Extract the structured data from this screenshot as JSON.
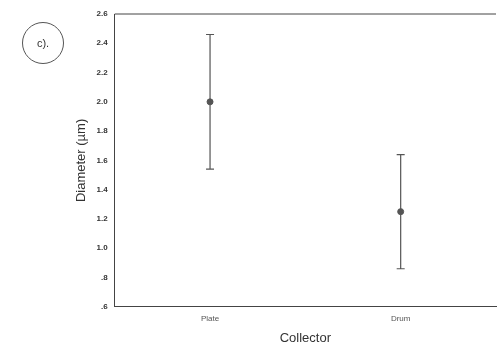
{
  "chart_data": {
    "type": "scatter",
    "annotation": "c).",
    "x_label": "Collector",
    "y_label": "Diameter (µm)",
    "categories": [
      "Plate",
      "Drum"
    ],
    "values": [
      2.0,
      1.25
    ],
    "lower": [
      1.54,
      0.86
    ],
    "upper": [
      2.46,
      1.64
    ],
    "color": "#555555",
    "marker": "circle",
    "ylim": [
      0.6,
      2.6
    ],
    "yticks": [
      {
        "value": 0.6,
        "label": ".6"
      },
      {
        "value": 0.8,
        "label": ".8"
      },
      {
        "value": 1,
        "label": "1.0"
      },
      1.2,
      1.4,
      1.6,
      1.8,
      {
        "value": 2,
        "label": "2.0"
      },
      2.2,
      2.4,
      2.6
    ],
    "grid": false
  }
}
